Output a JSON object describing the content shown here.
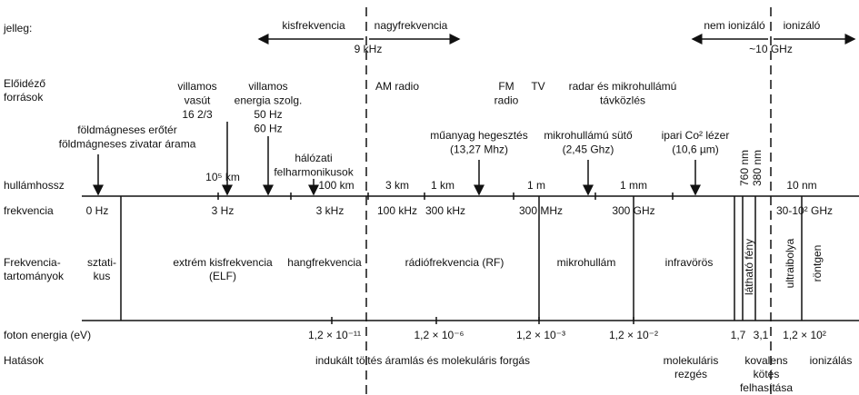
{
  "rows": {
    "jelleg": "jelleg:",
    "forrasok": [
      "Előidéző",
      "források"
    ],
    "hullamhossz": "hullámhossz",
    "frekvencia": "frekvencia",
    "tartomanyok": [
      "Frekvencia-",
      "tartományok"
    ],
    "foton": "foton energia (eV)",
    "hatasok": "Hatások"
  },
  "character": {
    "low": "kisfrekvencia",
    "high": "nagyfrekvencia",
    "split": "9 kHz",
    "nonion": "nem ionizáló",
    "ion": "ionizáló",
    "ion_split": "~10 GHz"
  },
  "sources": [
    {
      "lines": [
        "villamos",
        "vasút",
        "16 2/3"
      ]
    },
    {
      "lines": [
        "villamos",
        "energia szolg.",
        "50 Hz",
        "60 Hz"
      ]
    },
    {
      "lines": [
        "hálózati",
        "felharmonikusok"
      ]
    },
    {
      "lines": [
        "AM radio"
      ]
    },
    {
      "lines": [
        "FM",
        "radio"
      ]
    },
    {
      "lines": [
        "TV"
      ]
    },
    {
      "lines": [
        "radar és mikrohullámú",
        "távközlés"
      ]
    },
    {
      "lines": [
        "földmágneses erőtér",
        "földmágneses zivatar árama"
      ]
    },
    {
      "lines": [
        "műanyag hegesztés",
        "(13,27 Mhz)"
      ]
    },
    {
      "lines": [
        "mikrohullámú sütő",
        "(2,45 Ghz)"
      ]
    },
    {
      "lines": [
        "ipari Co² lézer",
        "(10,6 µm)"
      ]
    }
  ],
  "wavelengths": [
    "10⁵ km",
    "100 km",
    "3 km",
    "1 km",
    "1 m",
    "1 mm",
    "760 nm",
    "380 nm",
    "10 nm"
  ],
  "frequencies": [
    "0 Hz",
    "3 Hz",
    "3 kHz",
    "100 kHz",
    "300 kHz",
    "300 MHz",
    "300 GHz",
    "30-10² GHz"
  ],
  "ranges": [
    {
      "lines": [
        "sztati-",
        "kus"
      ]
    },
    {
      "lines": [
        "extrém kisfrekvencia",
        "(ELF)"
      ]
    },
    {
      "lines": [
        "hangfrekvencia"
      ]
    },
    {
      "lines": [
        "rádiófrekvencia (RF)"
      ]
    },
    {
      "lines": [
        "mikrohullám"
      ]
    },
    {
      "lines": [
        "infravörös"
      ]
    },
    {
      "lines": [
        "látható fény"
      ]
    },
    {
      "lines": [
        "ultraibolya"
      ]
    },
    {
      "lines": [
        "röntgen"
      ]
    }
  ],
  "photon_energies": [
    "1,2 × 10⁻¹¹",
    "1,2 × 10⁻⁶",
    "1,2 × 10⁻³",
    "1,2 × 10⁻²",
    "1,7",
    "3,1",
    "1,2 × 10²"
  ],
  "effects": [
    {
      "lines": [
        "indukált töltés áramlás és molekuláris forgás"
      ]
    },
    {
      "lines": [
        "molekuláris",
        "rezgés"
      ]
    },
    {
      "lines": [
        "kovalens",
        "kötés",
        "felhasítása"
      ]
    },
    {
      "lines": [
        "ionizálás"
      ]
    }
  ]
}
